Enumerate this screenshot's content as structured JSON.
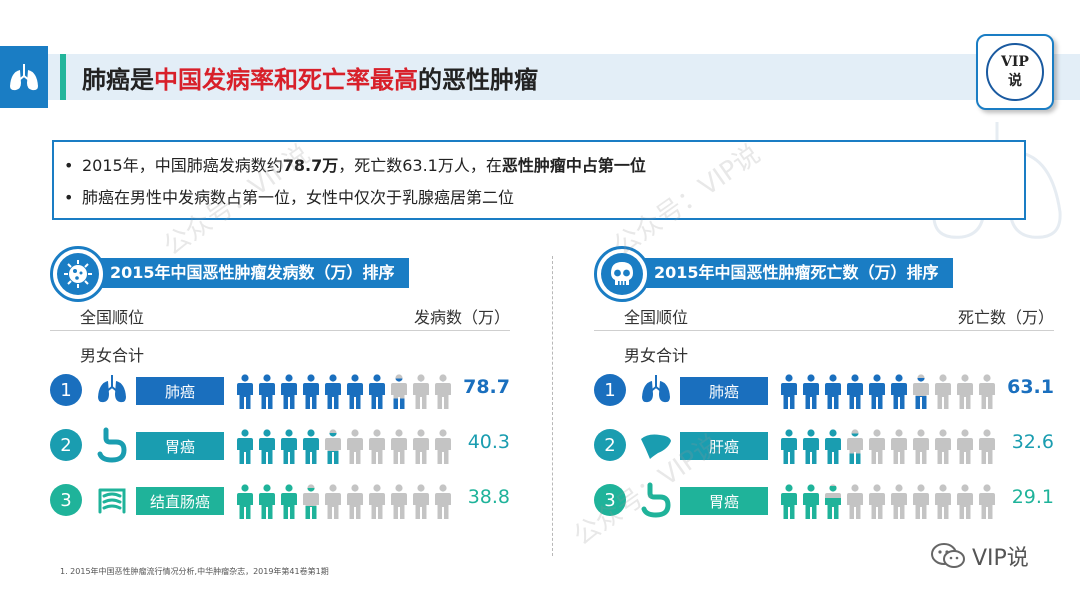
{
  "header": {
    "title_prefix": "肺癌是",
    "title_highlight": "中国发病率和死亡率最高",
    "title_suffix": "的恶性肿瘤",
    "badge_line1": "VIP",
    "badge_line2": "说"
  },
  "bullets": {
    "b1_pre": "2015年，中国肺癌发病数约",
    "b1_bold1": "78.7万",
    "b1_mid": "，死亡数63.1万人，在",
    "b1_bold2": "恶性肿瘤中占第一位",
    "b2": "肺癌在男性中发病数占第一位，女性中仅次于乳腺癌居第二位",
    "marker": "•"
  },
  "panels": [
    {
      "title": "2015年中国恶性肿瘤发病数（万）排序",
      "icon": "virus-icon",
      "col_rank": "全国顺位",
      "col_value": "发病数（万）",
      "subhead": "男女合计",
      "rows": [
        {
          "rank": "1",
          "label": "肺癌",
          "value": "78.7",
          "filled": 7.4,
          "organ": "lungs-icon",
          "color": "#1a6fbe",
          "value_bold": true
        },
        {
          "rank": "2",
          "label": "胃癌",
          "value": "40.3",
          "filled": 4.5,
          "organ": "stomach-icon",
          "color": "#1a9db0",
          "value_bold": false
        },
        {
          "rank": "3",
          "label": "结直肠癌",
          "value": "38.8",
          "filled": 3.5,
          "organ": "intestine-icon",
          "color": "#1fb39a",
          "value_bold": false
        }
      ]
    },
    {
      "title": "2015年中国恶性肿瘤死亡数（万）排序",
      "icon": "skull-icon",
      "col_rank": "全国顺位",
      "col_value": "死亡数（万）",
      "subhead": "男女合计",
      "rows": [
        {
          "rank": "1",
          "label": "肺癌",
          "value": "63.1",
          "filled": 6.5,
          "organ": "lungs-icon",
          "color": "#1a6fbe",
          "value_bold": true
        },
        {
          "rank": "2",
          "label": "肝癌",
          "value": "32.6",
          "filled": 3.4,
          "organ": "liver-icon",
          "color": "#1a9db0",
          "value_bold": false
        },
        {
          "rank": "3",
          "label": "胃癌",
          "value": "29.1",
          "filled": 2.8,
          "organ": "stomach-icon",
          "color": "#1fb39a",
          "value_bold": false
        }
      ]
    }
  ],
  "people_per_row": 10,
  "colors": {
    "empty_person": "#c4c4c4",
    "accent": "#1a7dc4",
    "title_highlight": "#d8202a"
  },
  "watermark": "公众号：VIP说",
  "footnote": "1. 2015年中国恶性肿瘤流行情况分析,中华肿瘤杂志，2019年第41卷第1期",
  "wechat_label": "VIP说"
}
